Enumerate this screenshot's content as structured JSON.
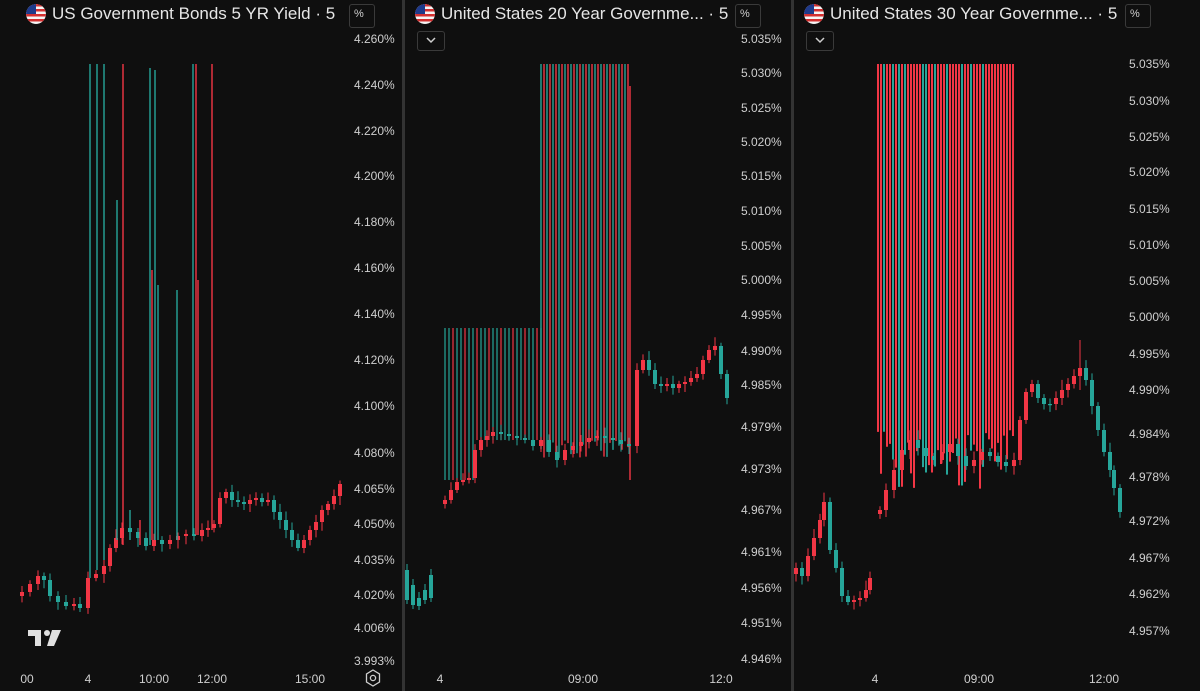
{
  "colors": {
    "up": "#26a69a",
    "down": "#f23645",
    "background": "#0f0f0f",
    "text": "#d1d4dc",
    "divider": "#333333"
  },
  "panels": [
    {
      "title": "US Government Bonds 5 YR Yield · 5",
      "scale_button": "%",
      "has_dropdown": false,
      "icons": [
        "us-flag-icon",
        "tradingview-logo-icon",
        "settings-icon"
      ]
    },
    {
      "title": "United States 20 Year Governme... · 5",
      "scale_button": "%",
      "has_dropdown": true,
      "icons": [
        "us-flag-icon",
        "chevron-down-icon"
      ]
    },
    {
      "title": "United States 30 Year Governme... · 5",
      "scale_button": "%",
      "has_dropdown": true,
      "icons": [
        "us-flag-icon",
        "chevron-down-icon"
      ]
    }
  ],
  "chart_data": [
    {
      "type": "candlestick",
      "title": "US Government Bonds 5 YR Yield · 5",
      "y_unit": "%",
      "y_ticks": [
        "4.260%",
        "4.240%",
        "4.220%",
        "4.200%",
        "4.180%",
        "4.160%",
        "4.140%",
        "4.120%",
        "4.100%",
        "4.080%",
        "4.065%",
        "4.050%",
        "4.035%",
        "4.020%",
        "4.006%",
        "3.993%"
      ],
      "x_ticks": [
        "00",
        "4",
        "10:00",
        "12:00",
        "15:00"
      ],
      "ylim": [
        3.99,
        4.27
      ],
      "spikes": [
        {
          "x": "4",
          "high": 4.25,
          "color": "up"
        },
        {
          "x": "10:00",
          "high": 4.25,
          "color": "down"
        },
        {
          "x": "10:00",
          "high": 4.25,
          "color": "up"
        },
        {
          "x": "12:00",
          "high": 4.25,
          "color": "up"
        },
        {
          "x": "12:00",
          "high": 4.25,
          "color": "down"
        }
      ],
      "last_value": 4.069
    },
    {
      "type": "candlestick",
      "title": "United States 20 Year Governme... · 5",
      "y_unit": "%",
      "y_ticks": [
        "5.035%",
        "5.030%",
        "5.025%",
        "5.020%",
        "5.015%",
        "5.010%",
        "5.005%",
        "5.000%",
        "4.995%",
        "4.990%",
        "4.985%",
        "4.979%",
        "4.973%",
        "4.967%",
        "4.961%",
        "4.956%",
        "4.951%",
        "4.946%"
      ],
      "x_ticks": [
        "4",
        "09:00",
        "12:0"
      ],
      "ylim": [
        4.945,
        5.036
      ],
      "plateau_highs": [
        4.994,
        5.031
      ],
      "last_value": 4.983
    },
    {
      "type": "candlestick",
      "title": "United States 30 Year Governme... · 5",
      "y_unit": "%",
      "y_ticks": [
        "5.035%",
        "5.030%",
        "5.025%",
        "5.020%",
        "5.015%",
        "5.010%",
        "5.005%",
        "5.000%",
        "4.995%",
        "4.990%",
        "4.984%",
        "4.978%",
        "4.972%",
        "4.967%",
        "4.962%",
        "4.957%"
      ],
      "x_ticks": [
        "4",
        "09:00",
        "12:00"
      ],
      "ylim": [
        4.955,
        5.036
      ],
      "plateau_high": 5.034,
      "last_value": 4.973
    }
  ]
}
